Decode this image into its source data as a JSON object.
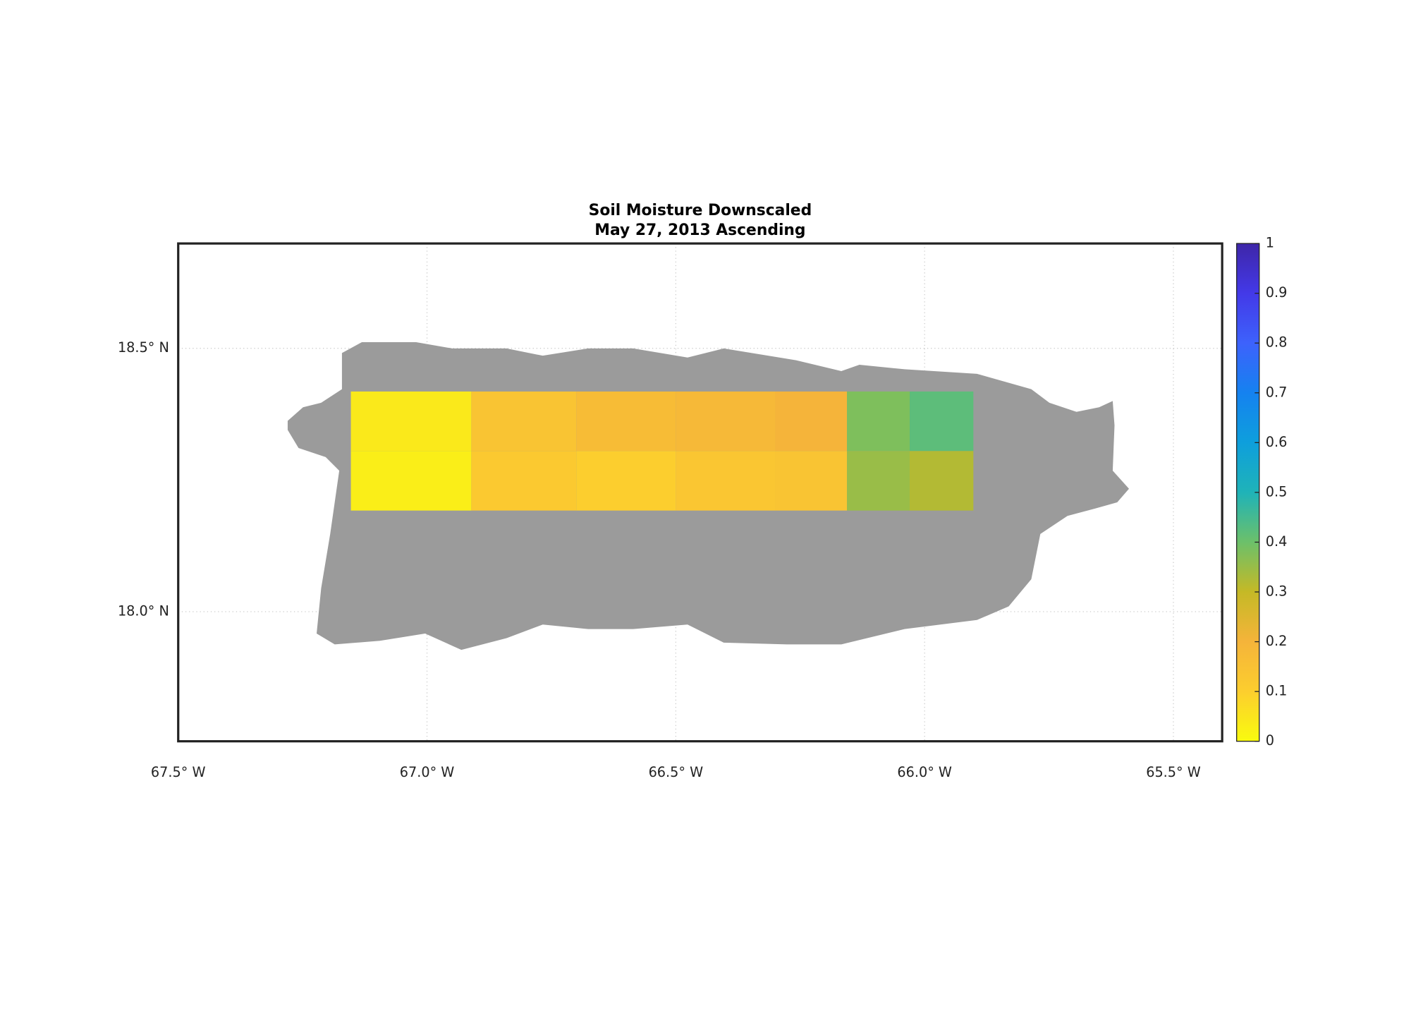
{
  "chart_data": {
    "type": "heatmap",
    "title": "Soil Moisture Downscaled",
    "subtitle": "May 27, 2013 Ascending",
    "xlim": [
      -67.5,
      -65.402
    ],
    "ylim": [
      17.754,
      18.699
    ],
    "xticks": [
      {
        "value": -67.5,
        "label": "67.5° W"
      },
      {
        "value": -67.0,
        "label": "67.0° W"
      },
      {
        "value": -66.5,
        "label": "66.5° W"
      },
      {
        "value": -66.0,
        "label": "66.0° W"
      },
      {
        "value": -65.5,
        "label": "65.5° W"
      }
    ],
    "yticks": [
      {
        "value": 18.0,
        "label": "18.0° N"
      },
      {
        "value": 18.5,
        "label": "18.5° N"
      }
    ],
    "grid": true,
    "xbins": [
      -67.153,
      -66.911,
      -66.7,
      -66.5,
      -66.3,
      -66.156,
      -66.03,
      -65.902
    ],
    "ybins": [
      18.418,
      18.305,
      18.192
    ],
    "values": [
      [
        0.04,
        0.14,
        0.17,
        0.18,
        0.2,
        0.38,
        0.42
      ],
      [
        0.03,
        0.12,
        0.1,
        0.13,
        0.14,
        0.35,
        0.32
      ]
    ],
    "clim": [
      0,
      1
    ],
    "cticks": [
      0,
      0.1,
      0.2,
      0.3,
      0.4,
      0.5,
      0.6,
      0.7,
      0.8,
      0.9,
      1
    ],
    "colormap": [
      "#f9fb0e",
      "#fcce2e",
      "#f5b43a",
      "#c5b926",
      "#6cc06a",
      "#1fb3b8",
      "#0e9fdc",
      "#1582f0",
      "#3d62fc",
      "#4339e8",
      "#3e26a8"
    ]
  }
}
